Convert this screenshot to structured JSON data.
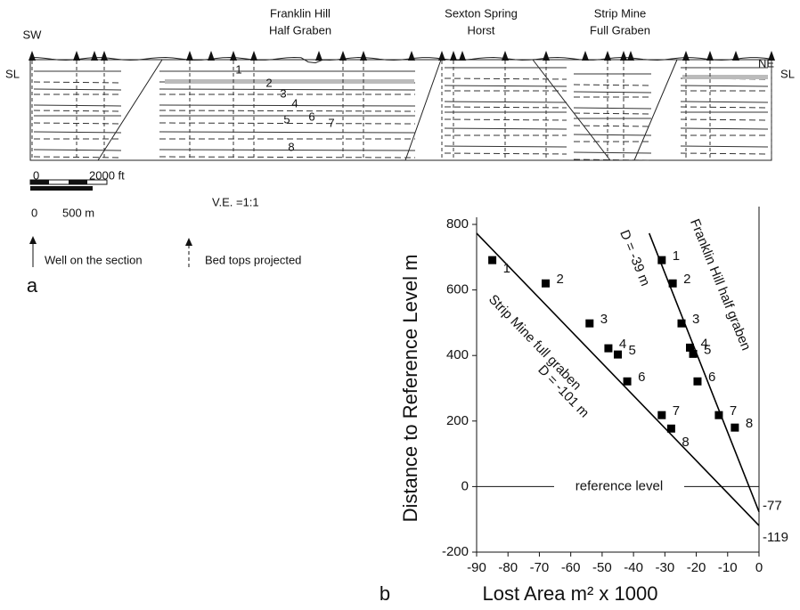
{
  "panel_a": {
    "label": "a",
    "left_end": "SW",
    "right_end": "NE",
    "sea_level_left": "SL",
    "sea_level_right": "SL",
    "structures": [
      {
        "line1": "Franklin Hill",
        "line2": "Half Graben"
      },
      {
        "line1": "Sexton Spring",
        "line2": "Horst"
      },
      {
        "line1": "Strip Mine",
        "line2": "Full Graben"
      }
    ],
    "beds": [
      "1",
      "2",
      "3",
      "4",
      "5",
      "6",
      "7",
      "8"
    ],
    "scale": {
      "zero_ft": "0",
      "ft": "2000 ft",
      "zero_m": "0",
      "m": "500 m"
    },
    "vertical_exaggeration": "V.E. =1:1",
    "legend": {
      "well": "Well on the section",
      "projected": "Bed tops projected"
    }
  },
  "chart_data": {
    "type": "scatter",
    "panel_label": "b",
    "x_label": "Lost Area m² x 1000",
    "y_label": "Distance to Reference Level m",
    "xlim": [
      -90,
      0
    ],
    "ylim": [
      -200,
      800
    ],
    "xticks": [
      -90,
      -80,
      -70,
      -60,
      -50,
      -40,
      -30,
      -20,
      -10,
      0
    ],
    "yticks": [
      -200,
      0,
      200,
      400,
      600,
      800
    ],
    "reference_line": {
      "label": "reference level",
      "value": 0
    },
    "series": [
      {
        "name": "Strip Mine full graben",
        "color": "#000000",
        "x": [
          -85,
          -68,
          -54,
          -48,
          -45,
          -42,
          -31,
          -28
        ],
        "values": [
          691,
          620,
          498,
          422,
          403,
          321,
          218,
          177
        ],
        "point_labels": [
          "1",
          "2",
          "3",
          "4",
          "5",
          "6",
          "7",
          "8"
        ],
        "fit_line": {
          "annotation": "D = -101 m",
          "x": [
            -90,
            0
          ],
          "y": [
            773,
            -119
          ]
        }
      },
      {
        "name": "Franklin Hill half graben",
        "color": "#000000",
        "x": [
          -31,
          -27.5,
          -24.7,
          -22,
          -21,
          -19.6,
          -12.8,
          -7.7
        ],
        "values": [
          691,
          620,
          498,
          424,
          405,
          321,
          218,
          180
        ],
        "point_labels": [
          "1",
          "2",
          "3",
          "4",
          "5",
          "6",
          "7",
          "8"
        ],
        "fit_line": {
          "annotation": "D = -39 m",
          "x": [
            -35,
            0
          ],
          "y": [
            773,
            -77
          ]
        }
      }
    ]
  }
}
